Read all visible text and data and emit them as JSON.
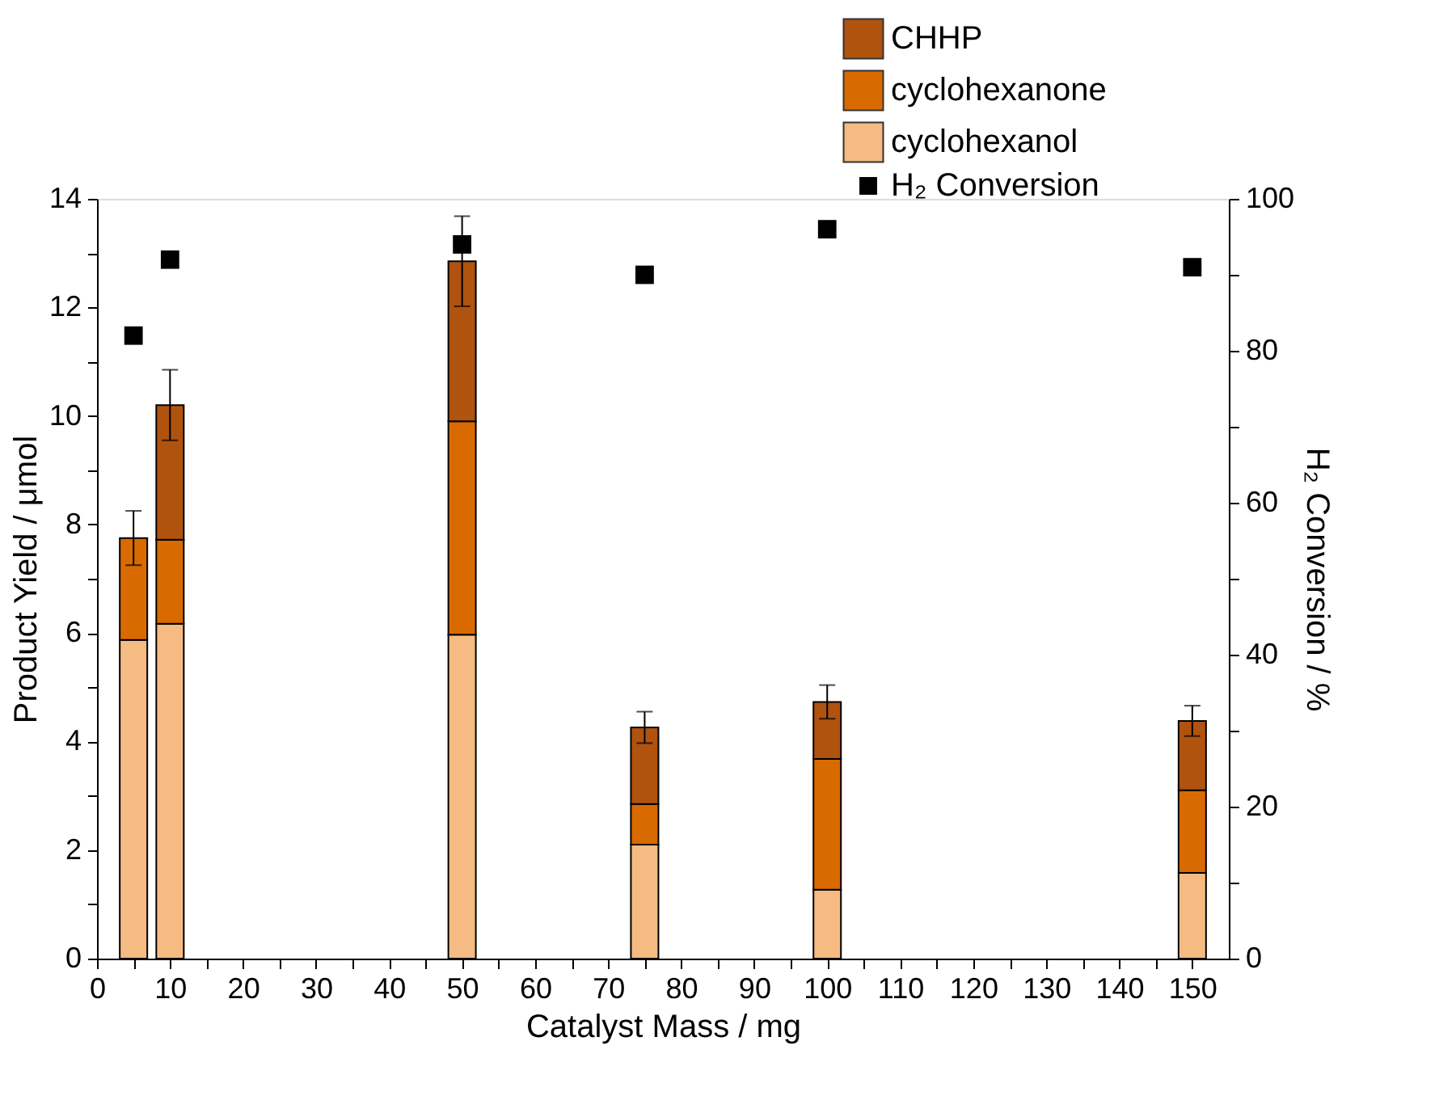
{
  "chart_data": {
    "type": "bar",
    "stacked": true,
    "x": [
      5,
      10,
      50,
      75,
      100,
      150
    ],
    "xlabel": "Catalyst Mass / mg",
    "ylabel": "Product Yield / μmol",
    "y2label": "H₂ Conversion / %",
    "xlim": [
      0,
      155
    ],
    "ylim": [
      0,
      14
    ],
    "y2lim": [
      0,
      100
    ],
    "xticks": [
      0,
      {
        "value": 5,
        "label": null
      },
      10,
      {
        "value": 15,
        "label": null
      },
      20,
      {
        "value": 25,
        "label": null
      },
      30,
      {
        "value": 35,
        "label": null
      },
      40,
      {
        "value": 45,
        "label": null
      },
      50,
      {
        "value": 55,
        "label": null
      },
      60,
      {
        "value": 65,
        "label": null
      },
      70,
      {
        "value": 75,
        "label": null
      },
      80,
      {
        "value": 85,
        "label": null
      },
      90,
      {
        "value": 95,
        "label": null
      },
      100,
      {
        "value": 105,
        "label": null
      },
      110,
      {
        "value": 115,
        "label": null
      },
      120,
      {
        "value": 125,
        "label": null
      },
      130,
      {
        "value": 135,
        "label": null
      },
      140,
      {
        "value": 145,
        "label": null
      },
      150
    ],
    "yticks": [
      0,
      {
        "value": 1,
        "label": null
      },
      2,
      {
        "value": 3,
        "label": null
      },
      4,
      {
        "value": 5,
        "label": null
      },
      6,
      {
        "value": 7,
        "label": null
      },
      8,
      {
        "value": 9,
        "label": null
      },
      10,
      {
        "value": 11,
        "label": null
      },
      12,
      {
        "value": 13,
        "label": null
      },
      14
    ],
    "y2ticks": [
      0,
      {
        "value": 10,
        "label": null
      },
      20,
      {
        "value": 30,
        "label": null
      },
      40,
      {
        "value": 50,
        "label": null
      },
      60,
      {
        "value": 70,
        "label": null
      },
      80,
      {
        "value": 90,
        "label": null
      },
      100
    ],
    "grid": false,
    "legend": "top right",
    "series": [
      {
        "name": "cyclohexanol",
        "color": "#f5bb82",
        "values": [
          5.87,
          6.17,
          5.97,
          2.1,
          1.27,
          1.58
        ]
      },
      {
        "name": "cyclohexanone",
        "color": "#d96a00",
        "values": [
          1.88,
          1.55,
          3.93,
          0.75,
          2.41,
          1.52
        ]
      },
      {
        "name": "CHHP",
        "color": "#b0530f",
        "values": [
          0,
          2.48,
          2.95,
          1.41,
          1.05,
          1.28
        ],
        "errors": [
          0.5,
          0.65,
          0.83,
          0.29,
          0.31,
          0.28
        ]
      },
      {
        "name": "H₂ Conversion",
        "type": "scatter",
        "axis": "y2",
        "color": "#000000",
        "marker": "square",
        "values": [
          82,
          92,
          94,
          90,
          96,
          91
        ]
      }
    ]
  }
}
